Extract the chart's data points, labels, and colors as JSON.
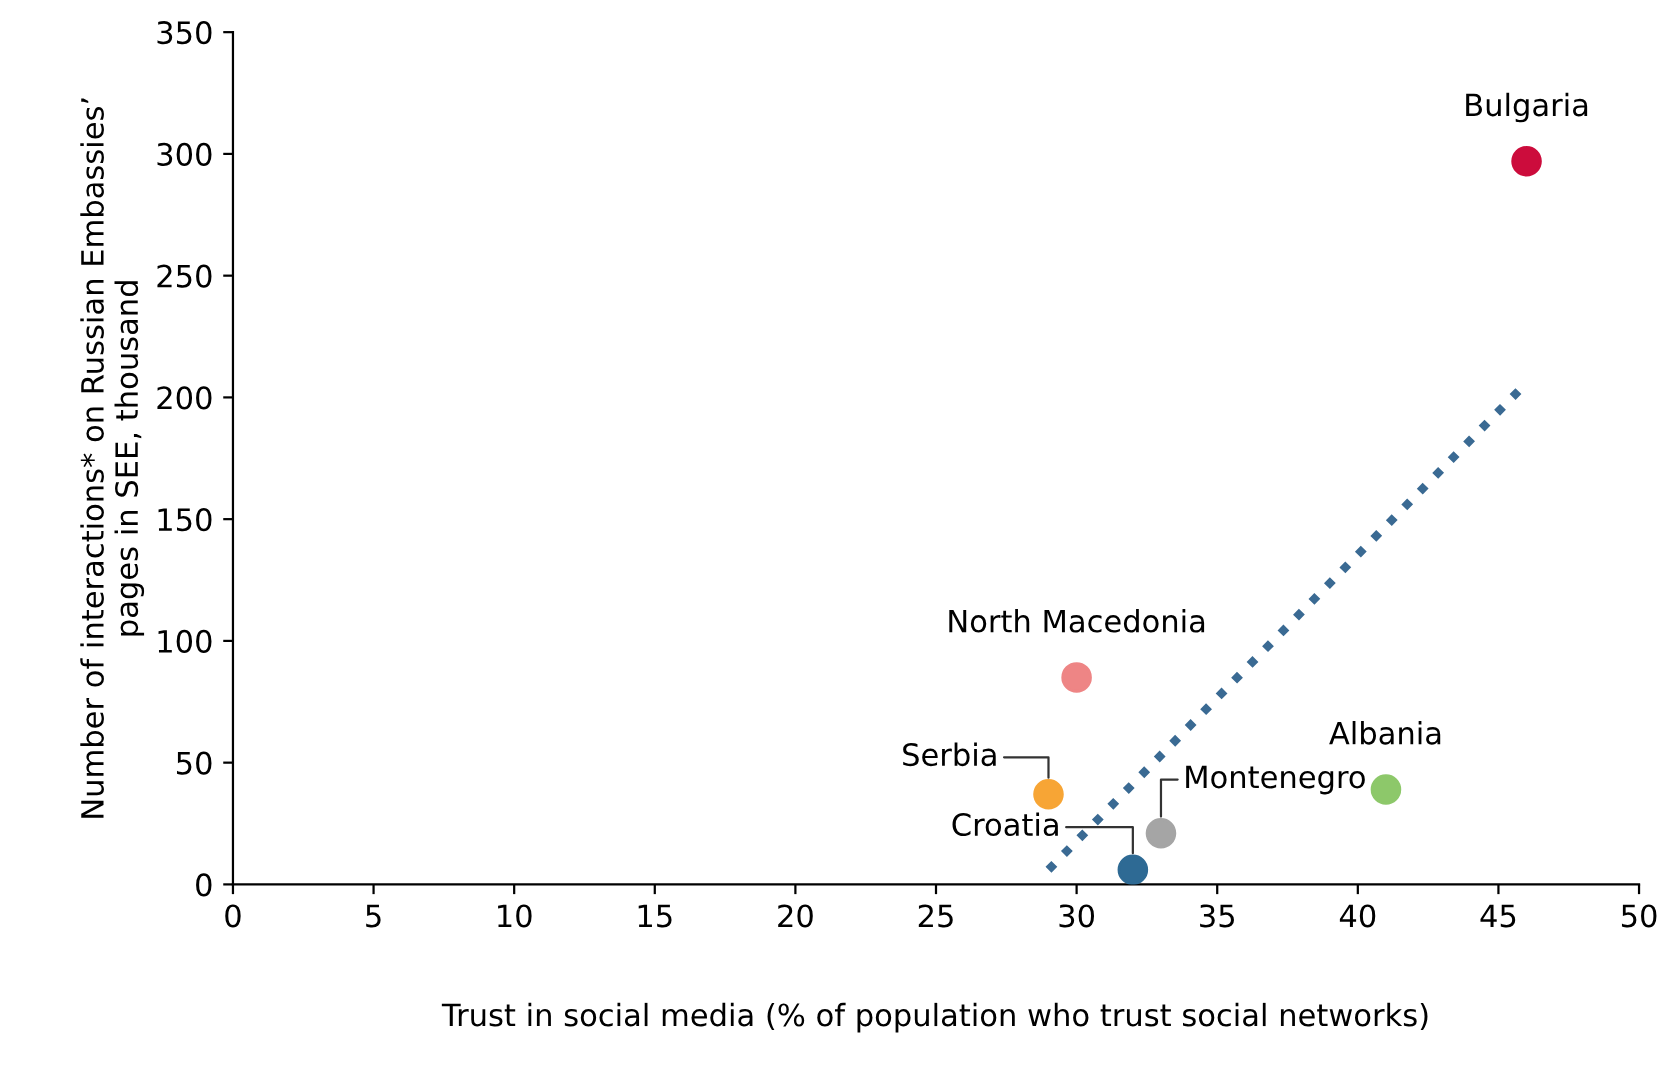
{
  "chart_data": {
    "type": "scatter",
    "xlabel": "Trust in social media (% of population who trust social networks)",
    "ylabel": "Number of interactions* on Russian Embassies’\npages in SEE, thousand",
    "series": [
      {
        "x": [
          46,
          30,
          29,
          41,
          33,
          32
        ],
        "values": [
          297,
          85,
          37,
          39,
          21,
          6
        ],
        "colors": [
          "#cc0c3c",
          "#ee8585",
          "#f7a535",
          "#8dc86a",
          "#a5a5a5",
          "#2e6a94"
        ],
        "marker": "circle"
      },
      {
        "type": "line",
        "x": [
          29,
          46
        ],
        "values": [
          6,
          206
        ],
        "color": "#3a6a93",
        "line_style": "dotted",
        "marker": "none"
      }
    ],
    "annotations": [
      {
        "text": "Bulgaria",
        "x": 46,
        "y": 297
      },
      {
        "text": "North Macedonia",
        "x": 30,
        "y": 85
      },
      {
        "text": "Serbia",
        "x": 29,
        "y": 37
      },
      {
        "text": "Albania",
        "x": 41,
        "y": 39
      },
      {
        "text": "Montenegro",
        "x": 33,
        "y": 21
      },
      {
        "text": "Croatia",
        "x": 32,
        "y": 6
      }
    ],
    "xlim": [
      0,
      50
    ],
    "xticks": [
      0,
      5,
      10,
      15,
      20,
      25,
      30,
      35,
      40,
      45,
      50
    ],
    "ylim": [
      0,
      350
    ],
    "yticks": [
      0,
      50,
      100,
      150,
      200,
      250,
      300,
      350
    ],
    "grid": false,
    "legend": false
  }
}
